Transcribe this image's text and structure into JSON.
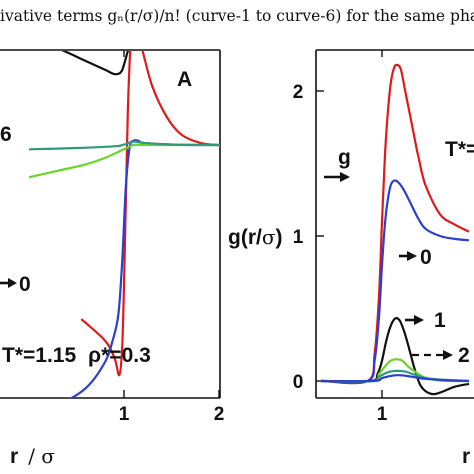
{
  "caption": "ivative terms gₙ(r/σ)/n! (curve-1 to curve-6) for the same phas",
  "colors": {
    "black": "#111111",
    "red": "#e0191b",
    "blue": "#2b3fcf",
    "green": "#6bd42b",
    "teal": "#2e9a7a"
  },
  "chart_data": [
    {
      "type": "line",
      "panel_label": "A",
      "annotation": "T*=1.15  ρ*=0.3",
      "state_text": "T*=1.15",
      "rho_text": "ρ*=0.3",
      "xlabel": "r / σ",
      "xlabel_r": "r",
      "xlabel_rest": "/ σ",
      "xticks": [
        "1",
        "2"
      ],
      "xlim": [
        0.0,
        2.32
      ],
      "ylim": [
        -0.6,
        0.45
      ],
      "visible_labels": [
        "6",
        "0"
      ],
      "series": [
        {
          "color": "black",
          "x": [
            0.0,
            0.3,
            0.6,
            0.8,
            0.9,
            0.97,
            1.01,
            1.05,
            1.08
          ],
          "y": [
            0.32,
            0.3,
            0.27,
            0.25,
            0.24,
            0.245,
            0.27,
            0.3,
            0.31
          ]
        },
        {
          "color": "red",
          "x": [
            0.55,
            0.8,
            0.9,
            0.95,
            0.98,
            1.0,
            1.02,
            1.04,
            1.06,
            1.08,
            1.1,
            1.12,
            1.15,
            1.2,
            1.3,
            1.45,
            1.6,
            1.8,
            2.0,
            2.32
          ],
          "y": [
            -0.33,
            -0.38,
            -0.42,
            -0.46,
            -0.4,
            -0.25,
            -0.05,
            0.15,
            0.27,
            0.33,
            0.35,
            0.345,
            0.33,
            0.29,
            0.21,
            0.14,
            0.1,
            0.08,
            0.075,
            0.075
          ]
        },
        {
          "color": "blue",
          "x": [
            0.0,
            0.3,
            0.6,
            0.8,
            0.88,
            0.94,
            0.98,
            1.02,
            1.06,
            1.1,
            1.15,
            1.2,
            1.4,
            1.7,
            2.0,
            2.32
          ],
          "y": [
            -0.55,
            -0.53,
            -0.49,
            -0.43,
            -0.38,
            -0.32,
            -0.2,
            -0.02,
            0.07,
            0.085,
            0.085,
            0.08,
            0.077,
            0.075,
            0.075,
            0.075
          ]
        },
        {
          "color": "green",
          "x": [
            0.0,
            0.3,
            0.6,
            0.8,
            0.9,
            1.0,
            1.1,
            1.2,
            1.5,
            2.0,
            2.32
          ],
          "y": [
            0.0,
            0.015,
            0.03,
            0.045,
            0.055,
            0.065,
            0.075,
            0.075,
            0.075,
            0.075,
            0.075
          ]
        },
        {
          "color": "teal",
          "x": [
            0.0,
            0.5,
            0.9,
            1.0,
            1.1,
            1.2,
            1.5,
            2.0,
            2.32
          ],
          "y": [
            0.065,
            0.068,
            0.072,
            0.076,
            0.083,
            0.08,
            0.076,
            0.075,
            0.075
          ]
        }
      ]
    },
    {
      "type": "line",
      "ylabel": "g(r/σ)",
      "ylabel_g": "g(r/",
      "ylabel_sigma": "σ",
      "ylabel_close": ")",
      "xlabel_visible": "r",
      "state_text": "T*=",
      "xticks": [
        "1"
      ],
      "yticks": [
        "0",
        "1",
        "2"
      ],
      "xlim": [
        0.58,
        1.6
      ],
      "ylim": [
        -0.12,
        2.28
      ],
      "visible_labels": [
        "g",
        "0",
        "1",
        "2"
      ],
      "series": [
        {
          "color": "red",
          "x": [
            0.58,
            0.9,
            0.95,
            0.98,
            1.0,
            1.02,
            1.04,
            1.06,
            1.08,
            1.1,
            1.13,
            1.16,
            1.2,
            1.25,
            1.3,
            1.4,
            1.5,
            1.6
          ],
          "y": [
            0.0,
            0.0,
            0.2,
            0.6,
            1.1,
            1.55,
            1.85,
            2.05,
            2.15,
            2.18,
            2.15,
            2.0,
            1.8,
            1.55,
            1.35,
            1.15,
            1.08,
            1.03
          ]
        },
        {
          "color": "blue",
          "x": [
            0.58,
            0.9,
            0.95,
            0.98,
            1.0,
            1.02,
            1.04,
            1.06,
            1.08,
            1.1,
            1.13,
            1.16,
            1.2,
            1.25,
            1.3,
            1.4,
            1.5,
            1.6
          ],
          "y": [
            0.0,
            0.0,
            0.15,
            0.45,
            0.8,
            1.08,
            1.25,
            1.35,
            1.38,
            1.38,
            1.35,
            1.3,
            1.22,
            1.12,
            1.05,
            1.0,
            0.98,
            0.97
          ]
        },
        {
          "color": "black",
          "x": [
            0.58,
            0.92,
            0.97,
            1.0,
            1.03,
            1.06,
            1.09,
            1.12,
            1.15,
            1.18,
            1.22,
            1.26,
            1.3,
            1.35,
            1.4,
            1.5,
            1.6
          ],
          "y": [
            0.0,
            0.0,
            0.05,
            0.14,
            0.28,
            0.38,
            0.43,
            0.42,
            0.35,
            0.25,
            0.1,
            -0.02,
            -0.07,
            -0.09,
            -0.08,
            -0.04,
            -0.02
          ]
        },
        {
          "color": "green",
          "x": [
            0.58,
            0.93,
            0.98,
            1.02,
            1.06,
            1.1,
            1.14,
            1.18,
            1.22,
            1.28,
            1.35,
            1.45,
            1.6
          ],
          "y": [
            0.0,
            0.0,
            0.05,
            0.1,
            0.14,
            0.15,
            0.14,
            0.1,
            0.07,
            0.03,
            0.01,
            0.0,
            0.0
          ]
        },
        {
          "color": "teal",
          "x": [
            0.58,
            0.93,
            0.98,
            1.04,
            1.1,
            1.16,
            1.22,
            1.3,
            1.4,
            1.6
          ],
          "y": [
            0.0,
            0.0,
            0.03,
            0.06,
            0.07,
            0.065,
            0.045,
            0.02,
            0.01,
            0.0
          ]
        },
        {
          "color": "blue",
          "x": [
            0.58,
            0.94,
            1.0,
            1.06,
            1.12,
            1.2,
            1.3,
            1.45,
            1.6
          ],
          "y": [
            0.0,
            0.0,
            0.02,
            0.035,
            0.04,
            0.03,
            0.015,
            0.005,
            0.0
          ]
        }
      ]
    }
  ]
}
